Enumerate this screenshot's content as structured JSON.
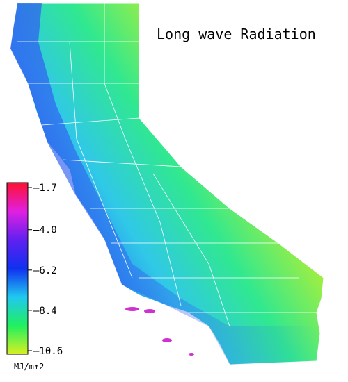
{
  "title": "Long wave Radiation",
  "colorbar": {
    "ticks": [
      {
        "value": -1.7,
        "label": "–1.7"
      },
      {
        "value": -4.0,
        "label": "–4.0"
      },
      {
        "value": -6.2,
        "label": "–6.2"
      },
      {
        "value": -8.4,
        "label": "–8.4"
      },
      {
        "value": -10.6,
        "label": "–10.6"
      }
    ],
    "unit": "MJ/m↑2",
    "colors": [
      "#ff1030",
      "#e020e0",
      "#6020f0",
      "#1030f0",
      "#20c8f0",
      "#20f060",
      "#d8f020"
    ]
  }
}
